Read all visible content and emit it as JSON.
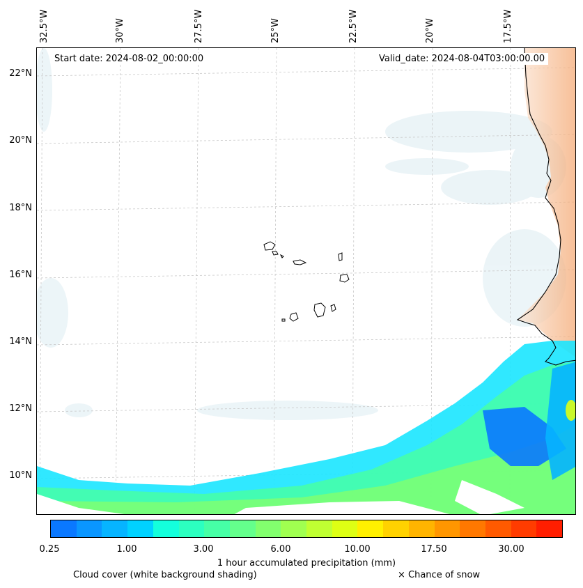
{
  "map": {
    "start_date": "Start date: 2024-08-02_00:00:00",
    "valid_date": "Valid_date: 2024-08-04T03:00:00.00",
    "lon_labels": [
      "32.5°W",
      "30°W",
      "27.5°W",
      "25°W",
      "22.5°W",
      "20°W",
      "17.5°W"
    ],
    "lat_labels": [
      "22°N",
      "20°N",
      "18°N",
      "16°N",
      "14°N",
      "12°N",
      "10°N"
    ]
  },
  "colorbar": {
    "title": "1 hour accumulated precipitation (mm)",
    "ticks": [
      "0.25",
      "1.00",
      "3.00",
      "6.00",
      "10.00",
      "17.50",
      "30.00"
    ],
    "colors": [
      "#0a78ff",
      "#0a96ff",
      "#06b4ff",
      "#00d2ff",
      "#14ffdc",
      "#2cffc0",
      "#46ffa6",
      "#64ff8c",
      "#82ff6e",
      "#a0ff50",
      "#c0ff32",
      "#deff14",
      "#fff000",
      "#ffd200",
      "#ffb400",
      "#ff9600",
      "#ff7800",
      "#ff5a00",
      "#ff3c00",
      "#ff1e00"
    ]
  },
  "legend": {
    "cloud_cover": "Cloud cover (white background shading)",
    "snow": "× Chance of snow"
  }
}
